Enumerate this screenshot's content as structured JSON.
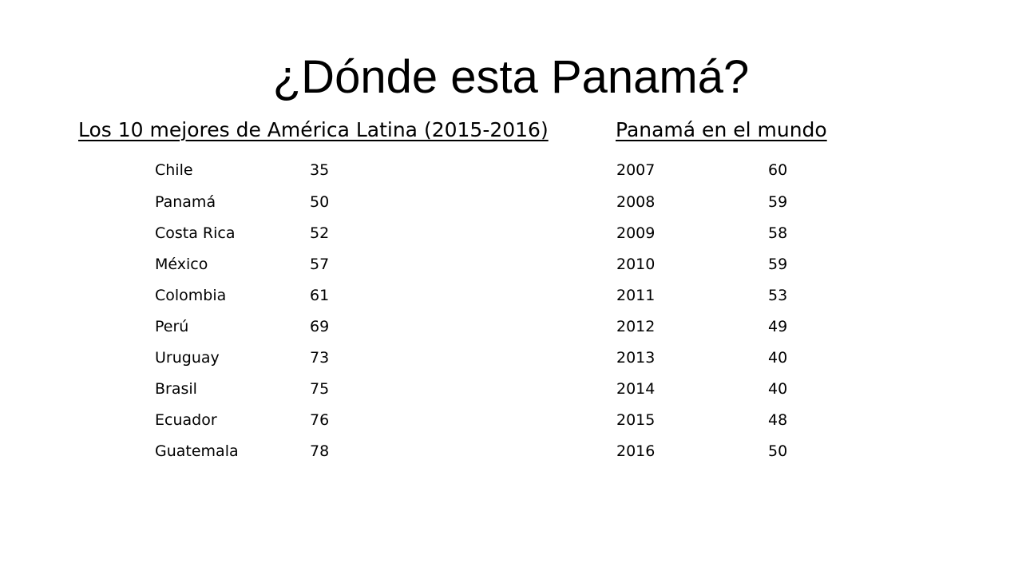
{
  "title": "¿Dónde esta Panamá?",
  "latin_america": {
    "heading": "Los 10 mejores de América Latina (2015-2016)",
    "rows": [
      {
        "country": "Chile",
        "rank": "35"
      },
      {
        "country": "Panamá",
        "rank": "50"
      },
      {
        "country": "Costa Rica",
        "rank": "52"
      },
      {
        "country": "México",
        "rank": "57"
      },
      {
        "country": "Colombia",
        "rank": "61"
      },
      {
        "country": "Perú",
        "rank": "69"
      },
      {
        "country": "Uruguay",
        "rank": "73"
      },
      {
        "country": "Brasil",
        "rank": "75"
      },
      {
        "country": "Ecuador",
        "rank": "76"
      },
      {
        "country": "Guatemala",
        "rank": "78"
      }
    ]
  },
  "panama_world": {
    "heading": "Panamá en el mundo",
    "rows": [
      {
        "year": "2007",
        "rank": "60"
      },
      {
        "year": "2008",
        "rank": "59"
      },
      {
        "year": "2009",
        "rank": "58"
      },
      {
        "year": "2010",
        "rank": "59"
      },
      {
        "year": "2011",
        "rank": "53"
      },
      {
        "year": "2012",
        "rank": "49"
      },
      {
        "year": "2013",
        "rank": "40"
      },
      {
        "year": "2014",
        "rank": "40"
      },
      {
        "year": "2015",
        "rank": "48"
      },
      {
        "year": "2016",
        "rank": "50"
      }
    ]
  }
}
